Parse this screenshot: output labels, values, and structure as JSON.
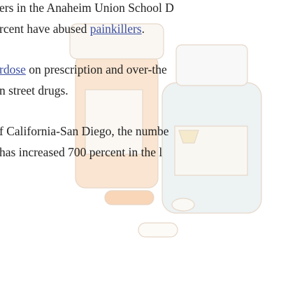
{
  "paragraphs": [
    {
      "lines": [
        [
          {
            "text": "ers in the Anaheim Union School D"
          }
        ],
        [
          {
            "text": "rcent have abused "
          },
          {
            "text": "painkillers",
            "link": true
          },
          {
            "text": "."
          }
        ]
      ]
    },
    {
      "lines": [
        [
          {
            "text": "rdose",
            "link": true
          },
          {
            "text": " on prescription and over-the"
          }
        ],
        [
          {
            "text": "n street drugs."
          }
        ]
      ]
    },
    {
      "lines": [
        [
          {
            "text": "f California-San Diego, the numbe"
          }
        ],
        [
          {
            "text": " has increased 700 percent in the l"
          }
        ]
      ]
    }
  ]
}
